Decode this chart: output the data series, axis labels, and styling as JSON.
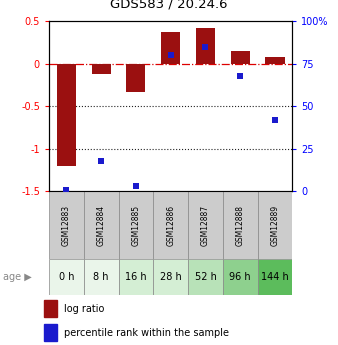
{
  "title": "GDS583 / 20.24.6",
  "samples": [
    "GSM12883",
    "GSM12884",
    "GSM12885",
    "GSM12886",
    "GSM12887",
    "GSM12888",
    "GSM12889"
  ],
  "age_labels": [
    "0 h",
    "8 h",
    "16 h",
    "28 h",
    "52 h",
    "96 h",
    "144 h"
  ],
  "age_colors": [
    "#eaf5ea",
    "#eaf5ea",
    "#d4eed4",
    "#d4eed4",
    "#b8e2b8",
    "#8ed08e",
    "#5cbc5c"
  ],
  "log_ratio": [
    -1.2,
    -0.12,
    -0.33,
    0.37,
    0.42,
    0.15,
    0.08
  ],
  "percentile_rank_pct": [
    1,
    18,
    3,
    80,
    85,
    68,
    42
  ],
  "ylim_left": [
    -1.5,
    0.5
  ],
  "ylim_right": [
    0,
    100
  ],
  "bar_color": "#9b1010",
  "dot_color": "#1a1acd",
  "hline_color": "#dd0000",
  "dot_line_color": "#888888",
  "grid_color": "#222222",
  "bar_width": 0.55,
  "legend_labels": [
    "log ratio",
    "percentile rank within the sample"
  ],
  "left_yticks": [
    0.5,
    0,
    -0.5,
    -1.0,
    -1.5
  ],
  "left_yticklabels": [
    "0.5",
    "0",
    "-0.5",
    "-1",
    "-1.5"
  ],
  "right_yticks": [
    0,
    25,
    50,
    75,
    100
  ],
  "right_yticklabels": [
    "0",
    "25",
    "50",
    "75",
    "100%"
  ]
}
